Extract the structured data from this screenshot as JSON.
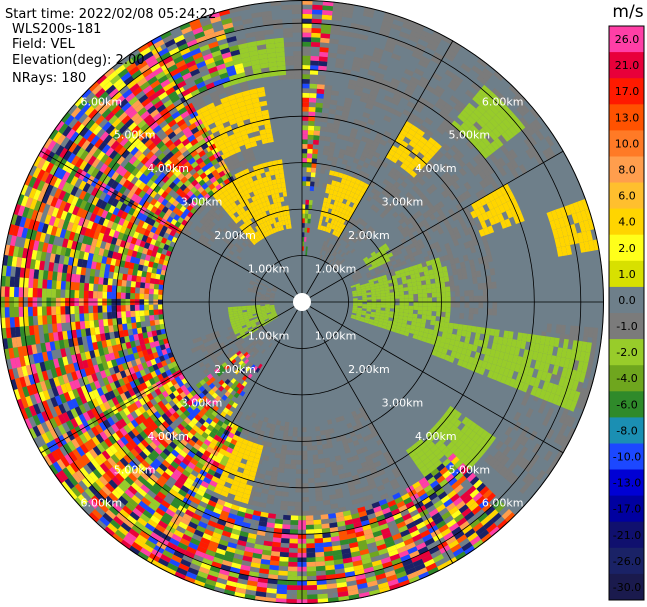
{
  "info": {
    "start_time": "Start time: 2022/02/08 05:24:22",
    "instrument": "WLS200s-181",
    "field": "Field: VEL",
    "elevation": "Elevation(deg): 2.00",
    "nrays": "NRays: 180"
  },
  "colorbar": {
    "title": "m/s",
    "ticks": [
      "26.0",
      "21.0",
      "17.0",
      "13.0",
      "10.0",
      "8.0",
      "6.0",
      "4.0",
      "2.0",
      "1.0",
      "0.0",
      "-1.0",
      "-2.0",
      "-4.0",
      "-6.0",
      "-8.0",
      "-10.0",
      "-13.0",
      "-17.0",
      "-21.0",
      "-26.0",
      "-30.0"
    ],
    "colors": [
      "#ff3fa6",
      "#e8003a",
      "#ff1a00",
      "#ff5200",
      "#ff7a26",
      "#ff9e4d",
      "#ffbf2e",
      "#ffd500",
      "#ffff1a",
      "#d8e000",
      "#6e7f8a",
      "#7b7b7b",
      "#98cc2a",
      "#6fa61e",
      "#2f8a2a",
      "#1b8fb3",
      "#1c48ff",
      "#0000d4",
      "#0000a0",
      "#10106e",
      "#1a2266",
      "#1a1a4d"
    ]
  },
  "chart_data": {
    "type": "ppi",
    "field": "VEL",
    "units": "m/s",
    "elevation_deg": 2.0,
    "nrays": 180,
    "range_rings_km": [
      1,
      2,
      3,
      4,
      5,
      6
    ],
    "range_labels": [
      "1.00km",
      "2.00km",
      "3.00km",
      "4.00km",
      "5.00km",
      "6.00km"
    ],
    "max_range_km": 6.5,
    "spoke_interval_deg": 30,
    "colorscale_range": [
      -30,
      26
    ],
    "colors": {
      "fill": "#6e7f8a",
      "clutter": "#7b7b7b",
      "positive": "#ffd500",
      "negative": "#98cc2a",
      "noise": [
        "#ff3fa6",
        "#e8003a",
        "#ff5200",
        "#ffd500",
        "#1c48ff",
        "#2f8a2a",
        "#98cc2a",
        "#ff9e4d",
        "#1a2266",
        "#ffff1a",
        "#6fa61e",
        "#ff1a00"
      ]
    }
  }
}
